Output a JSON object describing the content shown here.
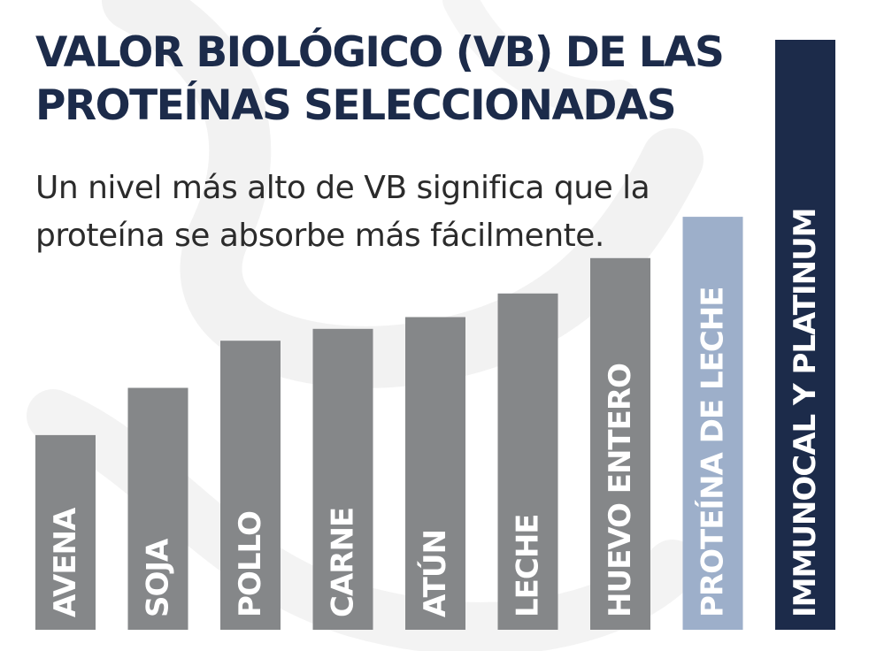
{
  "chart_data": {
    "type": "bar",
    "title": "VALOR BIOLÓGICO (VB) DE LAS PROTEÍNAS SELECCIONADAS",
    "subtitle": "Un nivel más alto de VB significa que la proteína se absorbe más fácilmente.",
    "categories": [
      "AVENA",
      "SOJA",
      "POLLO",
      "CARNE",
      "ATÚN",
      "LECHE",
      "HUEVO ENTERO",
      "PROTEÍNA DE LECHE",
      "IMMUNOCAL Y PLATINUM"
    ],
    "values": [
      33,
      41,
      49,
      51,
      53,
      57,
      63,
      70,
      100
    ],
    "ylim": [
      0,
      100
    ],
    "grid": false,
    "legend": "none",
    "bar_colors": [
      "#858789",
      "#858789",
      "#858789",
      "#858789",
      "#858789",
      "#858789",
      "#858789",
      "#9dafca",
      "#1c2b4a"
    ],
    "label_color": "#ffffff"
  },
  "colors": {
    "title": "#1c2b4a",
    "subtitle": "#2b2b2b",
    "background": "#ffffff",
    "swirl": "#eeeeee"
  }
}
